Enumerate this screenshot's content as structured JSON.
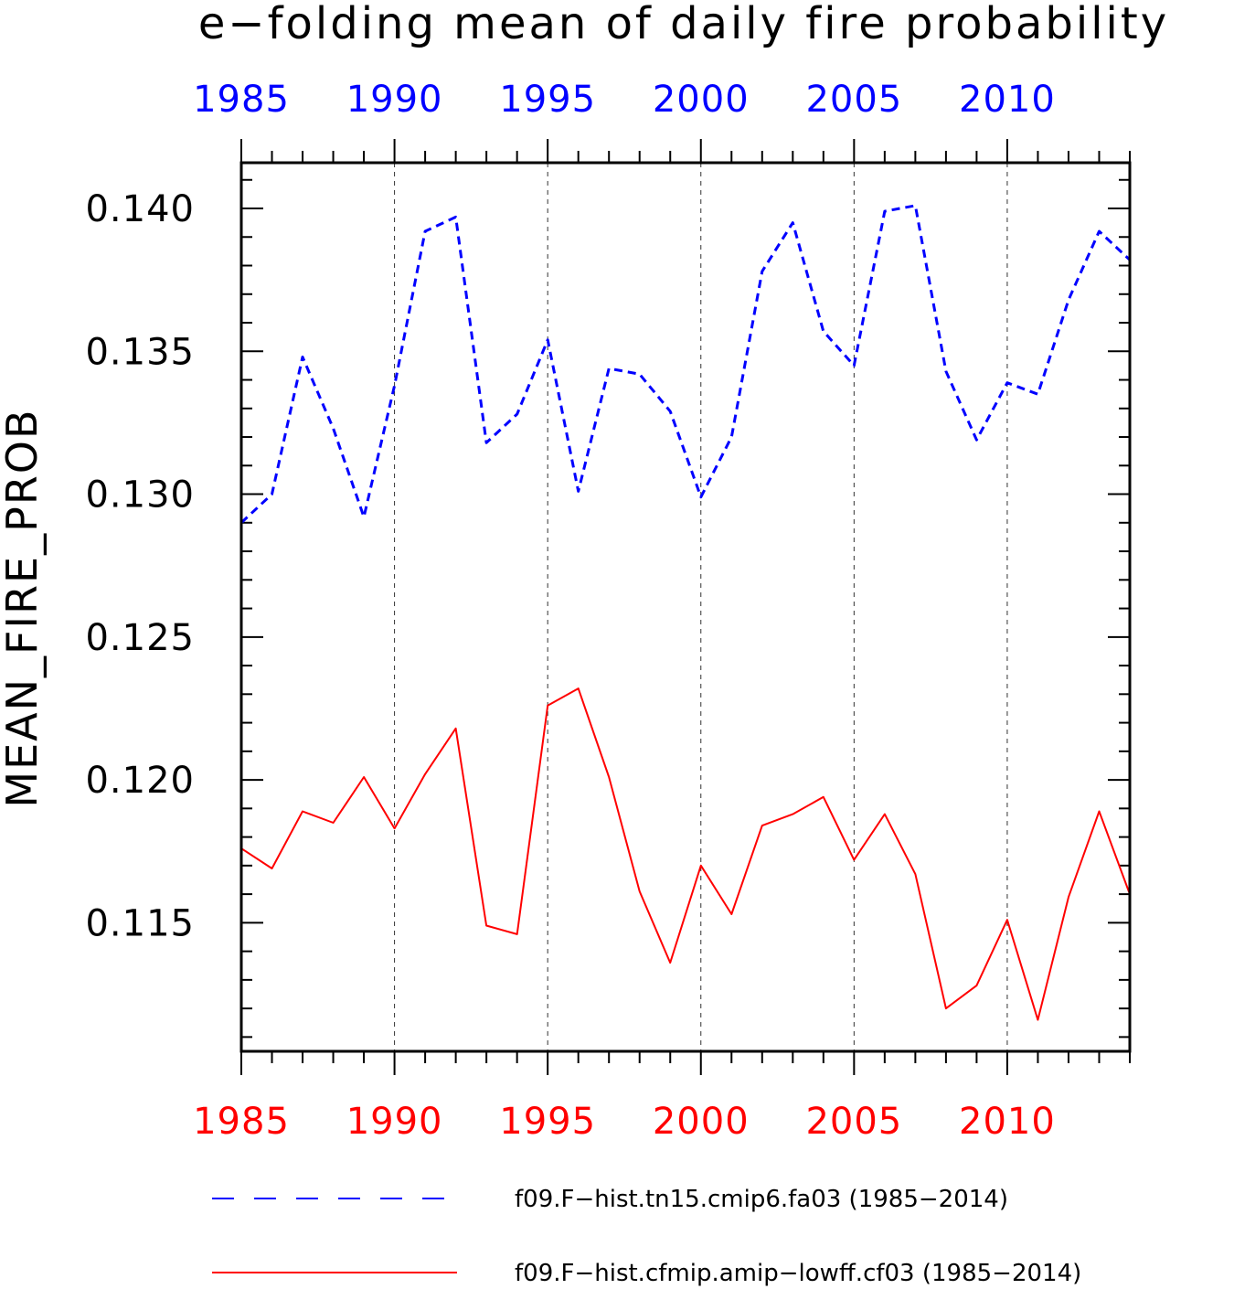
{
  "chart_data": {
    "type": "line",
    "title": "e−folding mean of daily fire probability",
    "ylabel": "MEAN_FIRE_PROB",
    "xlim": [
      1985,
      2014
    ],
    "ylim": [
      0.1105,
      0.1416
    ],
    "y_ticks": [
      0.115,
      0.12,
      0.125,
      0.13,
      0.135,
      0.14
    ],
    "y_tick_labels": [
      "0.115",
      "0.120",
      "0.125",
      "0.130",
      "0.135",
      "0.140"
    ],
    "x_ticks": [
      1985,
      1990,
      1995,
      2000,
      2005,
      2010
    ],
    "x_tick_labels": [
      "1985",
      "1990",
      "1995",
      "2000",
      "2005",
      "2010"
    ],
    "top_axis_color": "#0000ff",
    "bottom_axis_color": "#ff0000",
    "grid": "vertical dashed at major x ticks",
    "legend_position": "bottom",
    "x": [
      1985,
      1986,
      1987,
      1988,
      1989,
      1990,
      1991,
      1992,
      1993,
      1994,
      1995,
      1996,
      1997,
      1998,
      1999,
      2000,
      2001,
      2002,
      2003,
      2004,
      2005,
      2006,
      2007,
      2008,
      2009,
      2010,
      2011,
      2012,
      2013,
      2014
    ],
    "series": [
      {
        "name": "f09.F−hist.tn15.cmip6.fa03 (1985−2014)",
        "color": "#0000ff",
        "style": "dashed",
        "values": [
          0.129,
          0.13,
          0.1348,
          0.1323,
          0.1292,
          0.1338,
          0.1392,
          0.1397,
          0.1318,
          0.1328,
          0.1354,
          0.1301,
          0.1344,
          0.1342,
          0.1329,
          0.1299,
          0.132,
          0.1378,
          0.1395,
          0.1357,
          0.1345,
          0.1399,
          0.1401,
          0.1343,
          0.1319,
          0.1339,
          0.1335,
          0.1368,
          0.1392,
          0.1382
        ]
      },
      {
        "name": "f09.F−hist.cfmip.amip−lowff.cf03 (1985−2014)",
        "color": "#ff0000",
        "style": "solid",
        "values": [
          0.1176,
          0.1169,
          0.1189,
          0.1185,
          0.1201,
          0.1183,
          0.1202,
          0.1218,
          0.1149,
          0.1146,
          0.1226,
          0.1232,
          0.1201,
          0.1161,
          0.1136,
          0.117,
          0.1153,
          0.1184,
          0.1188,
          0.1194,
          0.1172,
          0.1188,
          0.1167,
          0.112,
          0.1128,
          0.1151,
          0.1116,
          0.1159,
          0.1189,
          0.116
        ]
      }
    ]
  }
}
